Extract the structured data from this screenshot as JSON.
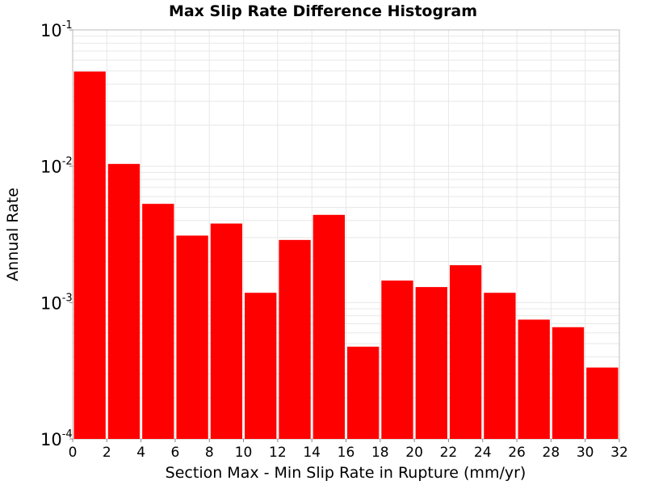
{
  "chart_data": {
    "type": "bar",
    "title": "Max Slip Rate Difference Histogram",
    "xlabel": "Section Max - Min Slip Rate in Rupture (mm/yr)",
    "ylabel": "Annual Rate",
    "x_bin_width": 2,
    "x_bin_starts": [
      0,
      2,
      4,
      6,
      8,
      10,
      12,
      14,
      16,
      18,
      20,
      22,
      24,
      26,
      28,
      30
    ],
    "values": [
      0.0495,
      0.0104,
      0.0053,
      0.0031,
      0.0038,
      0.00118,
      0.00288,
      0.0044,
      0.000475,
      0.00145,
      0.0013,
      0.00188,
      0.00118,
      0.00075,
      0.00066,
      0.000334
    ],
    "xlim": [
      0,
      32
    ],
    "ylim": [
      0.0001,
      0.1
    ],
    "y_scale": "log",
    "x_ticks": [
      "0",
      "2",
      "4",
      "6",
      "8",
      "10",
      "12",
      "14",
      "16",
      "18",
      "20",
      "22",
      "24",
      "26",
      "28",
      "30",
      "32"
    ],
    "y_ticks": [
      {
        "value": 0.1,
        "base": "10",
        "exp": "-1"
      },
      {
        "value": 0.01,
        "base": "10",
        "exp": "-2"
      },
      {
        "value": 0.001,
        "base": "10",
        "exp": "-3"
      },
      {
        "value": 0.0001,
        "base": "10",
        "exp": "-4"
      }
    ],
    "bar_color": "#ff0000",
    "grid": true,
    "grid_color": "#e8e8e8"
  }
}
